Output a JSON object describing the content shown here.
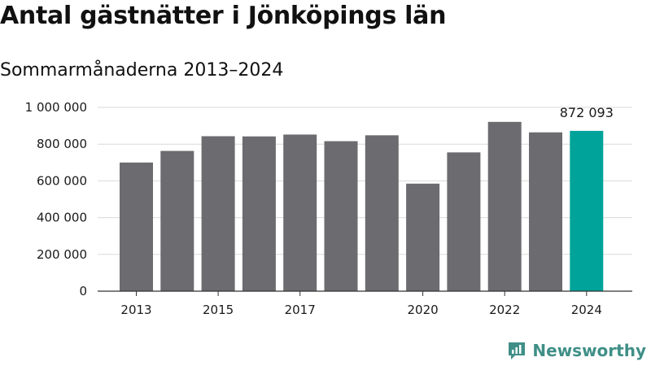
{
  "title": "Antal gästnätter i Jönköpings län",
  "subtitle": "Sommarmånaderna 2013–2024",
  "brand": {
    "name": "Newsworthy",
    "icon": "newsworthy-logo-icon"
  },
  "colors": {
    "bar": "#6b6b70",
    "highlight": "#00a39a",
    "grid": "#d9d9d9",
    "axis": "#333333"
  },
  "chart_data": {
    "type": "bar",
    "categories": [
      "2013",
      "2014",
      "2015",
      "2016",
      "2017",
      "2018",
      "2019",
      "2020",
      "2021",
      "2022",
      "2023",
      "2024"
    ],
    "values": [
      700000,
      763000,
      843000,
      842000,
      852000,
      816000,
      848000,
      585000,
      755000,
      921000,
      864000,
      872093
    ],
    "highlight_index": 11,
    "highlight_label": "872 093",
    "x_tick_labels": [
      "2013",
      "",
      "2015",
      "",
      "2017",
      "",
      "",
      "2020",
      "",
      "2022",
      "",
      "2024"
    ],
    "y_ticks": [
      0,
      200000,
      400000,
      600000,
      800000,
      1000000
    ],
    "y_tick_labels": [
      "0",
      "200 000",
      "400 000",
      "600 000",
      "800 000",
      "1 000 000"
    ],
    "ylim": [
      0,
      1000000
    ],
    "xlabel": "",
    "ylabel": "",
    "grid": true,
    "legend": "none"
  }
}
